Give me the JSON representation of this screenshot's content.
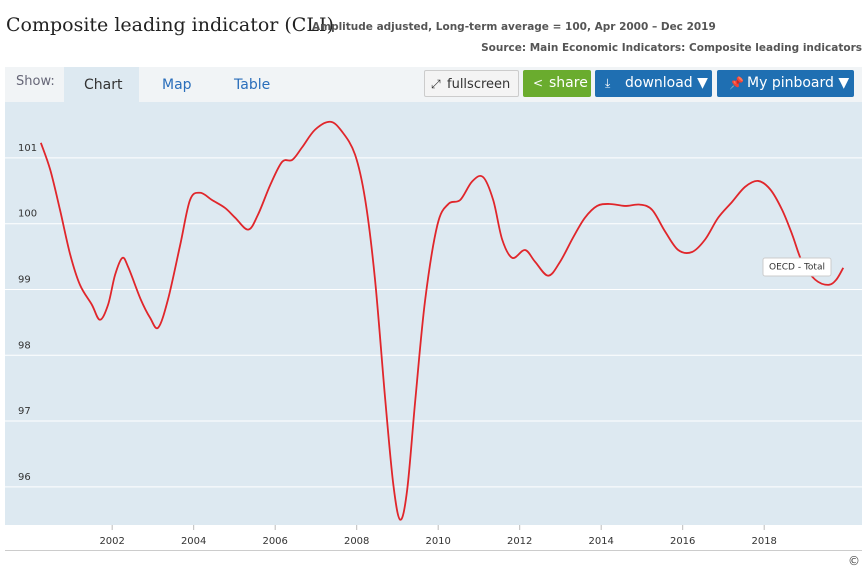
{
  "header": {
    "title": "Composite leading indicator (CLI)",
    "subtitle": "Amplitude adjusted, Long-term average = 100, Apr 2000 – Dec 2019",
    "source": "Source: Main Economic Indicators: Composite leading indicators"
  },
  "toolbar": {
    "show": "Show:",
    "tabs": [
      "Chart",
      "Map",
      "Table"
    ],
    "buttons": [
      "fullscreen",
      "share",
      "download ▼",
      "My pinboard ▼"
    ]
  },
  "footer": {
    "copyright": "©"
  },
  "chart_data": {
    "type": "line",
    "x": [
      2000.25,
      2000.48,
      2000.72,
      2000.97,
      2001.21,
      2001.5,
      2001.7,
      2001.9,
      2002.07,
      2002.25,
      2002.4,
      2002.7,
      2002.93,
      2003.13,
      2003.37,
      2003.67,
      2003.91,
      2004.16,
      2004.45,
      2004.77,
      2005.02,
      2005.34,
      2005.58,
      2005.88,
      2006.17,
      2006.42,
      2006.66,
      2006.98,
      2007.35,
      2007.64,
      2007.96,
      2008.21,
      2008.45,
      2008.7,
      2008.9,
      2009.07,
      2009.24,
      2009.44,
      2009.68,
      2009.98,
      2010.25,
      2010.54,
      2010.83,
      2011.1,
      2011.35,
      2011.57,
      2011.82,
      2012.13,
      2012.38,
      2012.7,
      2012.99,
      2013.31,
      2013.6,
      2013.9,
      2014.21,
      2014.58,
      2014.95,
      2015.25,
      2015.57,
      2015.89,
      2016.23,
      2016.55,
      2016.87,
      2017.21,
      2017.53,
      2017.85,
      2018.15,
      2018.44,
      2018.69,
      2018.93,
      2019.25,
      2019.57,
      2019.77,
      2019.94
    ],
    "series": [
      {
        "name": "OECD - Total",
        "color": "#e0262b",
        "values": [
          101.23,
          100.82,
          100.21,
          99.53,
          99.07,
          98.77,
          98.54,
          98.77,
          99.22,
          99.48,
          99.33,
          98.85,
          98.57,
          98.42,
          98.85,
          99.68,
          100.36,
          100.47,
          100.36,
          100.24,
          100.09,
          99.91,
          100.14,
          100.59,
          100.94,
          100.97,
          101.16,
          101.43,
          101.55,
          101.4,
          101.05,
          100.36,
          99.15,
          97.33,
          96.03,
          95.5,
          95.96,
          97.33,
          98.84,
          99.98,
          100.3,
          100.36,
          100.64,
          100.71,
          100.36,
          99.76,
          99.48,
          99.6,
          99.42,
          99.21,
          99.42,
          99.79,
          100.09,
          100.27,
          100.3,
          100.27,
          100.29,
          100.21,
          99.88,
          99.6,
          99.57,
          99.76,
          100.09,
          100.33,
          100.56,
          100.65,
          100.52,
          100.21,
          99.83,
          99.42,
          99.15,
          99.07,
          99.15,
          99.33
        ]
      }
    ],
    "xlim": [
      1999.37,
      2020.4
    ],
    "xticks": [
      2002,
      2004,
      2006,
      2008,
      2010,
      2012,
      2014,
      2016,
      2018
    ],
    "ylim": [
      95.42,
      101.85
    ],
    "yticks": [
      96,
      97,
      98,
      99,
      100,
      101
    ],
    "grid": true
  }
}
